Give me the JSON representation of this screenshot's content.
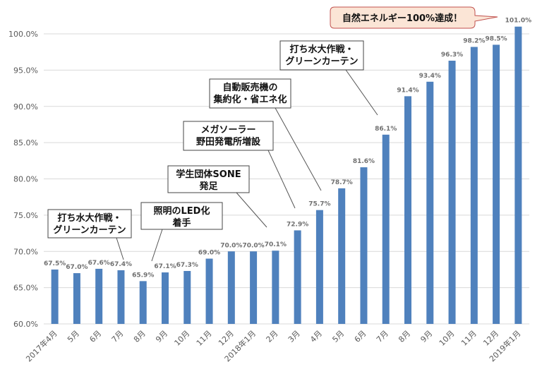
{
  "chart_data": {
    "type": "bar",
    "title": "",
    "xlabel": "",
    "ylabel": "",
    "ylim": [
      60,
      101
    ],
    "yticks": [
      "60.0%",
      "65.0%",
      "70.0%",
      "75.0%",
      "80.0%",
      "85.0%",
      "90.0%",
      "95.0%",
      "100.0%"
    ],
    "ytick_values": [
      60,
      65,
      70,
      75,
      80,
      85,
      90,
      95,
      100
    ],
    "grid": true,
    "bar_color": "#4f81bd",
    "categories": [
      "2017年4月",
      "5月",
      "6月",
      "7月",
      "8月",
      "9月",
      "10月",
      "11月",
      "12月",
      "2018年1月",
      "2月",
      "3月",
      "4月",
      "5月",
      "6月",
      "7月",
      "8月",
      "9月",
      "10月",
      "11月",
      "12月",
      "2019年1月"
    ],
    "values": [
      67.5,
      67.0,
      67.6,
      67.4,
      65.9,
      67.1,
      67.3,
      69.0,
      70.0,
      70.0,
      70.1,
      72.9,
      75.7,
      78.7,
      81.6,
      86.1,
      91.4,
      93.4,
      96.3,
      98.2,
      98.5,
      101.0
    ],
    "data_labels": [
      "67.5%",
      "67.0%",
      "67.6%",
      "67.4%",
      "65.9%",
      "67.1%",
      "67.3%",
      "69.0%",
      "70.0%",
      "70.0%",
      "70.1%",
      "72.9%",
      "75.7%",
      "78.7%",
      "81.6%",
      "86.1%",
      "91.4%",
      "93.4%",
      "96.3%",
      "98.2%",
      "98.5%",
      "101.0%"
    ],
    "annotations": [
      {
        "lines": [
          "打ち水大作戦・",
          "グリーンカーテン"
        ],
        "category": "7月"
      },
      {
        "lines": [
          "照明のLED化",
          "着手"
        ],
        "category": "8月"
      },
      {
        "lines": [
          "学生団体SONE",
          "発足"
        ],
        "category": "2月"
      },
      {
        "lines": [
          "メガソーラー",
          "野田発電所増設"
        ],
        "category": "3月"
      },
      {
        "lines": [
          "自動販売機の",
          "集約化・省エネ化"
        ],
        "category": "4月"
      },
      {
        "lines": [
          "打ち水大作戦・",
          "グリーンカーテン"
        ],
        "category": "7月"
      },
      {
        "lines": [
          "自然エネルギー100%達成！"
        ],
        "category": "2019年1月",
        "style": "callout"
      }
    ]
  }
}
